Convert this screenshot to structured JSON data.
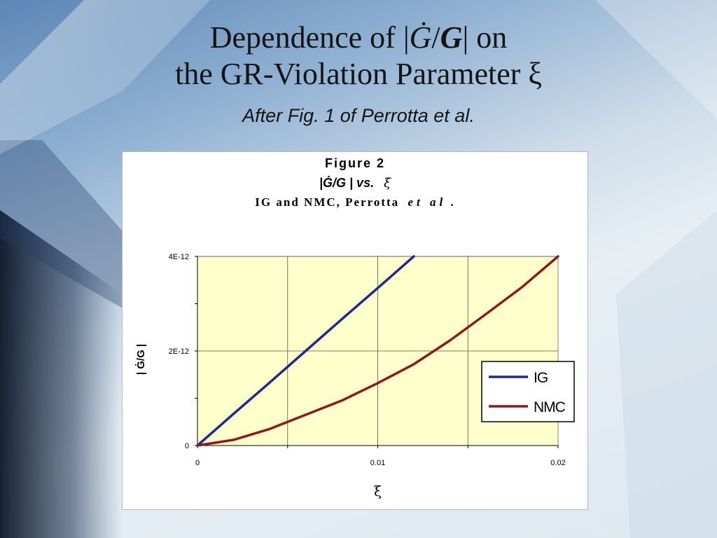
{
  "slide": {
    "title_line1_prefix": "Dependence of  |",
    "title_gdot": "Ġ",
    "title_slash": "/",
    "title_g": "G",
    "title_line1_suffix": "|  on",
    "title_line2": "the GR-Violation Parameter ξ",
    "subtitle": "After Fig. 1 of Perrotta et al."
  },
  "chart_data": {
    "type": "line",
    "title": "Figure 2",
    "subtitle_main": "|Ġ/G | vs.",
    "subtitle_symbol": "ξ",
    "caption_main": "IG and NMC, Perrotta",
    "caption_italic": "et al",
    "caption_end": ".",
    "xlabel": "ξ",
    "ylabel": "| Ġ/G |",
    "xlim": [
      0,
      0.02
    ],
    "ylim": [
      0,
      4e-12
    ],
    "x_ticks": [
      0,
      0.01,
      0.02
    ],
    "x_tick_labels": [
      "0",
      "0.01",
      "0.02"
    ],
    "y_ticks": [
      0,
      2e-12,
      4e-12
    ],
    "y_tick_labels": [
      "0",
      "2E-12",
      "4E-12"
    ],
    "grid": true,
    "plot_background": "#ffffcc",
    "legend_position": "lower-right",
    "series": [
      {
        "name": "IG",
        "color": "#1f2a8a",
        "x": [
          0,
          0.002,
          0.004,
          0.006,
          0.008,
          0.01,
          0.012
        ],
        "y": [
          0,
          6.7e-13,
          1.33e-12,
          2e-12,
          2.67e-12,
          3.33e-12,
          4e-12
        ]
      },
      {
        "name": "NMC",
        "color": "#8b1a1a",
        "x": [
          0,
          0.002,
          0.004,
          0.006,
          0.008,
          0.01,
          0.012,
          0.014,
          0.016,
          0.018,
          0.02
        ],
        "y": [
          0,
          1.2e-13,
          3.5e-13,
          6.5e-13,
          9.5e-13,
          1.32e-12,
          1.72e-12,
          2.22e-12,
          2.78e-12,
          3.35e-12,
          4e-12
        ]
      }
    ]
  }
}
